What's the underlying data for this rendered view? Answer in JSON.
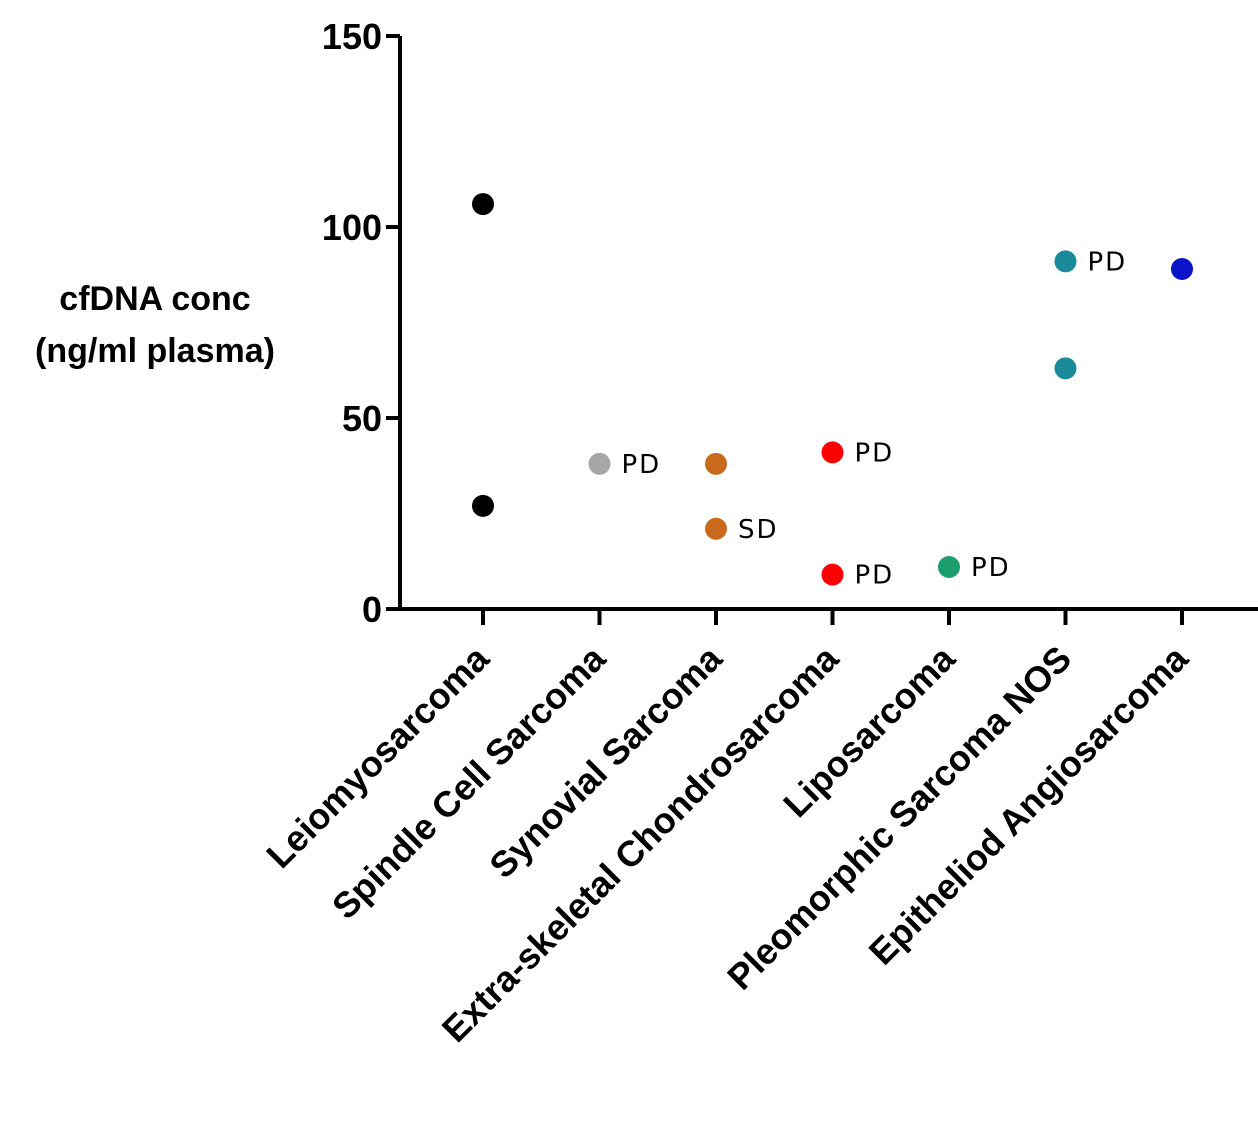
{
  "chart_data": {
    "type": "scatter",
    "title": "",
    "ylabel_lines": [
      "cfDNA conc",
      "(ng/ml plasma)"
    ],
    "xlabel": "",
    "ylim": [
      0,
      150
    ],
    "yticks": [
      0,
      50,
      100,
      150
    ],
    "ytick_labels": [
      "0",
      "50",
      "100",
      "150"
    ],
    "grid": false,
    "categories": [
      "Leiomyosarcoma",
      "Spindle Cell Sarcoma",
      "Synovial Sarcoma",
      "Extra-skeletal Chondrosarcoma",
      "Liposarcoma",
      "Pleomorphic Sarcoma NOS",
      "Epitheliod Angiosarcoma"
    ],
    "colors": [
      "#000000",
      "#a6a6a6",
      "#c8691c",
      "#ff0000",
      "#1a9e6e",
      "#1a8a9a",
      "#0a14c8"
    ],
    "points": [
      {
        "category": "Leiomyosarcoma",
        "y": 106,
        "label": ""
      },
      {
        "category": "Leiomyosarcoma",
        "y": 27,
        "label": ""
      },
      {
        "category": "Spindle Cell Sarcoma",
        "y": 38,
        "label": "PD"
      },
      {
        "category": "Synovial Sarcoma",
        "y": 38,
        "label": ""
      },
      {
        "category": "Synovial Sarcoma",
        "y": 21,
        "label": "SD"
      },
      {
        "category": "Extra-skeletal Chondrosarcoma",
        "y": 41,
        "label": "PD"
      },
      {
        "category": "Extra-skeletal Chondrosarcoma",
        "y": 9,
        "label": "PD"
      },
      {
        "category": "Liposarcoma",
        "y": 11,
        "label": "PD"
      },
      {
        "category": "Pleomorphic Sarcoma NOS",
        "y": 91,
        "label": "PD"
      },
      {
        "category": "Pleomorphic Sarcoma NOS",
        "y": 63,
        "label": ""
      },
      {
        "category": "Epitheliod Angiosarcoma",
        "y": 89,
        "label": ""
      }
    ]
  }
}
